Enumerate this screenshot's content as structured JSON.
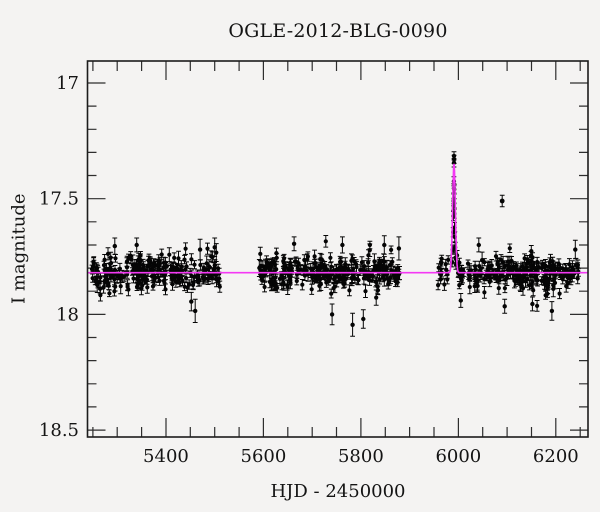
{
  "title": "OGLE-2012-BLG-0090",
  "axes": {
    "x_label": "HJD - 2450000",
    "y_label": "I magnitude"
  },
  "colors": {
    "background": "#f4f3f2",
    "frame": "#1c1c1c",
    "ticks": "#2e2e2e",
    "points": "#050505",
    "model_curve": "#f438f4"
  },
  "chart_data": {
    "type": "scatter",
    "title": "OGLE-2012-BLG-0090",
    "xlabel": "HJD - 2450000",
    "ylabel": "I magnitude",
    "xlim": [
      5239,
      6266
    ],
    "ylim": [
      16.905,
      18.53
    ],
    "y_axis_inverted": "magnitude increases downward",
    "x_major_ticks": [
      5400,
      5600,
      5800,
      6000,
      6200
    ],
    "x_major_tick_labels": [
      "5400",
      "5600",
      "5800",
      "6000",
      "6200"
    ],
    "x_minor_step": 50,
    "y_major_ticks": [
      17,
      17.5,
      18,
      18.5
    ],
    "y_major_tick_labels": [
      "17",
      "17.5",
      "18",
      "18.5"
    ],
    "y_minor_step": 0.1,
    "grid": "off",
    "legend": "none",
    "baseline_mag": 17.82,
    "model_curve": {
      "baseline_mag": 17.82,
      "peak_t": 5991,
      "peak_mag": 17.35,
      "gauss_width_days": 2.8
    },
    "scatter": {
      "seed": 13,
      "sigma_mag": 0.034,
      "outlier_prob": 0.012,
      "event_exclude_window": [
        5985.5,
        5996.5
      ],
      "seasons": [
        {
          "t_start": 5248,
          "t_end": 5511,
          "n": 240
        },
        {
          "t_start": 5591,
          "t_end": 5880,
          "n": 280
        },
        {
          "t_start": 5958,
          "t_end": 6248,
          "n": 250
        }
      ]
    },
    "event_points": [
      [
        5987.2,
        17.775,
        0.02
      ],
      [
        5988.6,
        17.72,
        0.02
      ],
      [
        5989.4,
        17.645,
        0.02
      ],
      [
        5989.9,
        17.575,
        0.02
      ],
      [
        5990.3,
        17.53,
        0.02
      ],
      [
        5990.6,
        17.5,
        0.02
      ],
      [
        5990.8,
        17.455,
        0.02
      ],
      [
        5990.9,
        17.425,
        0.02
      ],
      [
        5991.0,
        17.315,
        0.018
      ],
      [
        5991.1,
        17.345,
        0.018
      ],
      [
        5991.2,
        17.33,
        0.018
      ],
      [
        5991.35,
        17.46,
        0.02
      ],
      [
        5991.5,
        17.52,
        0.02
      ],
      [
        5991.7,
        17.565,
        0.02
      ],
      [
        5992.1,
        17.625,
        0.022
      ],
      [
        5992.6,
        17.665,
        0.022
      ],
      [
        5993.2,
        17.71,
        0.02
      ],
      [
        5994.1,
        17.755,
        0.02
      ],
      [
        5995.0,
        17.785,
        0.02
      ]
    ],
    "outlier_point": [
      6090,
      17.51,
      0.025
    ],
    "extra_points": [
      [
        5295,
        17.705,
        0.035
      ],
      [
        5340,
        17.7,
        0.03
      ],
      [
        5452,
        17.945,
        0.04
      ],
      [
        5460,
        17.985,
        0.05
      ],
      [
        5470,
        17.72,
        0.045
      ],
      [
        5500,
        17.71,
        0.04
      ],
      [
        5663,
        17.695,
        0.03
      ],
      [
        5741,
        18.0,
        0.045
      ],
      [
        5762,
        17.7,
        0.035
      ],
      [
        5783,
        18.045,
        0.05
      ],
      [
        5805,
        18.02,
        0.04
      ],
      [
        5848,
        17.7,
        0.04
      ],
      [
        5878,
        17.715,
        0.05
      ],
      [
        6005,
        17.94,
        0.03
      ],
      [
        6042,
        17.7,
        0.03
      ],
      [
        6095,
        17.965,
        0.03
      ],
      [
        6152,
        17.955,
        0.03
      ],
      [
        6192,
        17.985,
        0.04
      ],
      [
        6240,
        17.72,
        0.04
      ]
    ]
  }
}
